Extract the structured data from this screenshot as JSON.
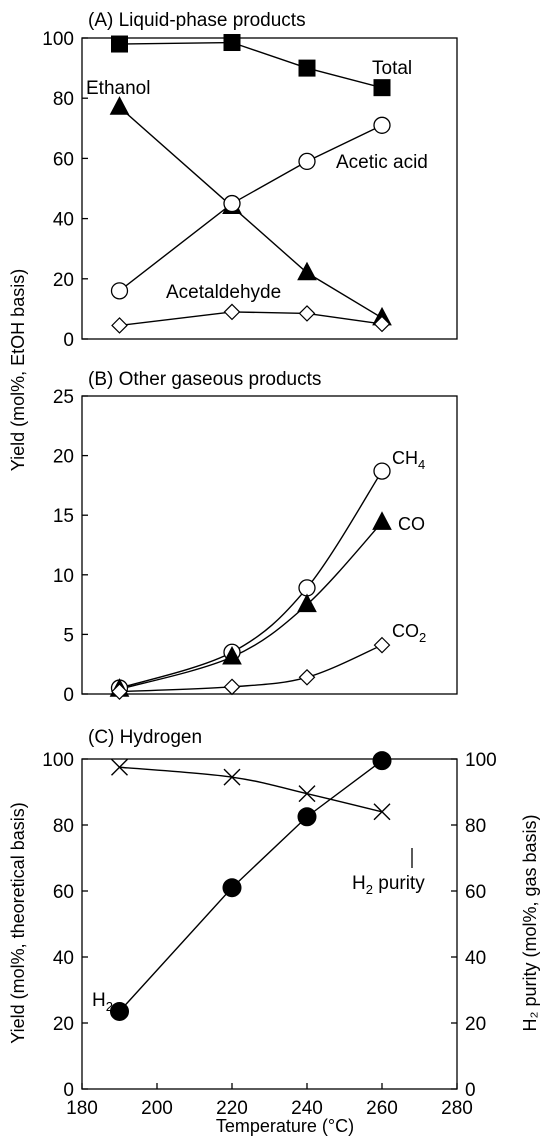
{
  "ylabel_left_AB": "Yield (mol%, EtOH basis)",
  "ylabel_left_C": "Yield (mol%, theoretical basis)",
  "ylabel_right_C": "H₂ purity (mol%, gas basis)",
  "xlabel": "Temperature (°C)",
  "chart_data": [
    {
      "type": "line",
      "title": "(A)  Liquid-phase products",
      "x": [
        190,
        220,
        240,
        260
      ],
      "xlim": [
        180,
        280
      ],
      "ylim": [
        0,
        100
      ],
      "yticks": [
        0,
        20,
        40,
        60,
        80,
        100
      ],
      "series": [
        {
          "name": "Total",
          "marker": "filled-square",
          "values": [
            98,
            98.5,
            90,
            83.5
          ]
        },
        {
          "name": "Ethanol",
          "marker": "filled-triangle",
          "values": [
            77,
            44,
            22,
            7
          ]
        },
        {
          "name": "Acetic acid",
          "marker": "open-circle",
          "values": [
            16,
            45,
            59,
            71
          ]
        },
        {
          "name": "Acetaldehyde",
          "marker": "open-diamond",
          "values": [
            4.5,
            9,
            8.5,
            5
          ]
        }
      ]
    },
    {
      "type": "line",
      "title": "(B)  Other gaseous products",
      "x": [
        190,
        220,
        240,
        260
      ],
      "xlim": [
        180,
        280
      ],
      "ylim": [
        0,
        25
      ],
      "yticks": [
        0,
        5,
        10,
        15,
        20,
        25
      ],
      "series": [
        {
          "name": "CH4",
          "label_main": "CH",
          "label_sub": "4",
          "marker": "open-circle",
          "values": [
            0.5,
            3.5,
            8.9,
            18.7
          ]
        },
        {
          "name": "CO",
          "marker": "filled-triangle",
          "values": [
            0.4,
            3.1,
            7.5,
            14.4
          ]
        },
        {
          "name": "CO2",
          "label_main": "CO",
          "label_sub": "2",
          "marker": "open-diamond",
          "values": [
            0.2,
            0.6,
            1.4,
            4.1
          ]
        }
      ]
    },
    {
      "type": "line",
      "title": "(C)  Hydrogen",
      "x": [
        190,
        220,
        240,
        260
      ],
      "xlim": [
        180,
        280
      ],
      "xticks": [
        180,
        200,
        220,
        240,
        260,
        280
      ],
      "ylim": [
        0,
        100
      ],
      "yticks": [
        0,
        20,
        40,
        60,
        80,
        100
      ],
      "y2lim": [
        0,
        100
      ],
      "y2ticks": [
        0,
        20,
        40,
        60,
        80,
        100
      ],
      "series": [
        {
          "name": "H2",
          "label_main": "H",
          "label_sub": "2",
          "marker": "filled-circle",
          "axis": "left",
          "values": [
            23.5,
            61,
            82.5,
            99.5
          ]
        },
        {
          "name": "H2 purity",
          "label_main": "H",
          "label_sub": "2",
          "label_rest": " purity",
          "marker": "cross",
          "axis": "right",
          "values": [
            97.5,
            94.5,
            89.5,
            84
          ]
        }
      ]
    }
  ]
}
